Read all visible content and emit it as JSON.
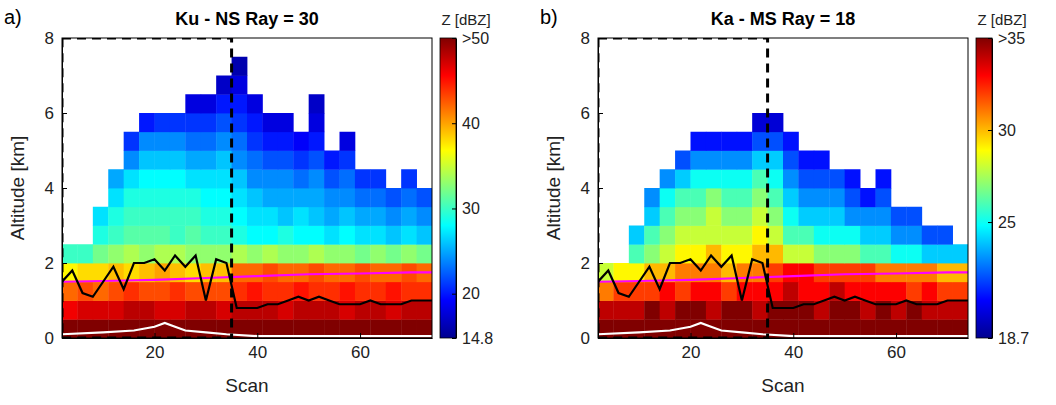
{
  "chart_data": [
    {
      "type": "heatmap",
      "label": "a)",
      "title": "Ku - NS Ray = 30",
      "xlabel": "Scan",
      "ylabel": "Altitude [km]",
      "xlim": [
        2,
        74
      ],
      "ylim": [
        0,
        8
      ],
      "xticks": [
        20,
        40,
        60
      ],
      "yticks": [
        0,
        2,
        4,
        6,
        8
      ],
      "x_edges": [
        2,
        5,
        8,
        11,
        14,
        17,
        20,
        23,
        26,
        29,
        32,
        35,
        38,
        41,
        44,
        47,
        50,
        53,
        56,
        59,
        62,
        65,
        68,
        71,
        74
      ],
      "y_edges": [
        0,
        0.5,
        1,
        1.5,
        2,
        2.5,
        3,
        3.5,
        4,
        4.5,
        5,
        5.5,
        6,
        6.5,
        7,
        7.5,
        8
      ],
      "z": [
        [
          51,
          52,
          52,
          53,
          52,
          52,
          53,
          52,
          52,
          53,
          52,
          52,
          53,
          52,
          52,
          52,
          53,
          52,
          52,
          52,
          53,
          52,
          52,
          52
        ],
        [
          46,
          47,
          47,
          47,
          48,
          48,
          47,
          47,
          48,
          48,
          47,
          48,
          48,
          48,
          47,
          48,
          48,
          48,
          47,
          48,
          48,
          47,
          48,
          48
        ],
        [
          42,
          43,
          42,
          43,
          44,
          43,
          43,
          44,
          43,
          43,
          43,
          44,
          45,
          44,
          44,
          45,
          44,
          44,
          45,
          44,
          44,
          45,
          44,
          44
        ],
        [
          37,
          38,
          38,
          39,
          38,
          39,
          40,
          39,
          38,
          39,
          39,
          42,
          42,
          43,
          42,
          42,
          43,
          42,
          42,
          43,
          42,
          42,
          43,
          42
        ],
        [
          30,
          30,
          32,
          33,
          34,
          33,
          34,
          34,
          33,
          33,
          33,
          34,
          33,
          34,
          33,
          33,
          34,
          33,
          33,
          32,
          33,
          32,
          33,
          32
        ],
        [
          null,
          null,
          29,
          30,
          31,
          31,
          31,
          30,
          31,
          30,
          30,
          29,
          28,
          28,
          29,
          28,
          28,
          27,
          28,
          27,
          27,
          26,
          27,
          26
        ],
        [
          null,
          null,
          27,
          29,
          30,
          30,
          30,
          30,
          30,
          29,
          29,
          28,
          27,
          27,
          26,
          27,
          26,
          25,
          26,
          25,
          25,
          24,
          25,
          24
        ],
        [
          null,
          null,
          null,
          27,
          29,
          29,
          29,
          29,
          29,
          28,
          28,
          27,
          26,
          25,
          25,
          25,
          25,
          24,
          24,
          23,
          23,
          22,
          23,
          22
        ],
        [
          null,
          null,
          null,
          25,
          27,
          28,
          28,
          28,
          27,
          27,
          27,
          26,
          24,
          24,
          24,
          23,
          24,
          22,
          23,
          21,
          21,
          null,
          21,
          null
        ],
        [
          null,
          null,
          null,
          null,
          24,
          26,
          26,
          26,
          25,
          25,
          26,
          24,
          23,
          22,
          22,
          21,
          22,
          20,
          21,
          null,
          null,
          null,
          null,
          null
        ],
        [
          null,
          null,
          null,
          null,
          21,
          24,
          24,
          24,
          23,
          23,
          24,
          23,
          21,
          20,
          20,
          19,
          20,
          null,
          18,
          null,
          null,
          null,
          null,
          null
        ],
        [
          null,
          null,
          null,
          null,
          null,
          20,
          21,
          21,
          21,
          21,
          22,
          21,
          20,
          18,
          18,
          null,
          18,
          null,
          null,
          null,
          null,
          null,
          null,
          null
        ],
        [
          null,
          null,
          null,
          null,
          null,
          null,
          null,
          null,
          18,
          18,
          20,
          20,
          18,
          null,
          null,
          null,
          17,
          null,
          null,
          null,
          null,
          null,
          null,
          null
        ],
        [
          null,
          null,
          null,
          null,
          null,
          null,
          null,
          null,
          null,
          null,
          17,
          18,
          null,
          null,
          null,
          null,
          null,
          null,
          null,
          null,
          null,
          null,
          null,
          null
        ],
        [
          null,
          null,
          null,
          null,
          null,
          null,
          null,
          null,
          null,
          null,
          null,
          16,
          null,
          null,
          null,
          null,
          null,
          null,
          null,
          null,
          null,
          null,
          null,
          null
        ],
        [
          null,
          null,
          null,
          null,
          null,
          null,
          null,
          null,
          null,
          null,
          null,
          null,
          null,
          null,
          null,
          null,
          null,
          null,
          null,
          null,
          null,
          null,
          null,
          null
        ]
      ],
      "colorbar": {
        "title": "Z [dBZ]",
        "range": [
          14.8,
          50
        ],
        "ticks": [
          14.8,
          20,
          30,
          40,
          {
            "value": 50,
            "label": ">50"
          }
        ]
      },
      "lines": [
        {
          "color": "#ff00ff",
          "x": [
            2,
            10,
            20,
            30,
            40,
            50,
            60,
            70,
            74
          ],
          "values": [
            1.5,
            1.52,
            1.55,
            1.6,
            1.65,
            1.7,
            1.72,
            1.75,
            1.75
          ]
        },
        {
          "color": "#000000",
          "x": [
            2,
            4,
            6,
            8,
            10,
            12,
            14,
            16,
            18,
            20,
            22,
            24,
            26,
            28,
            30,
            32,
            34,
            36,
            38,
            40,
            42,
            44,
            46,
            48,
            50,
            52,
            54,
            56,
            58,
            60,
            62,
            64,
            66,
            68,
            70,
            72,
            74
          ],
          "values": [
            1.5,
            1.8,
            1.2,
            1.1,
            1.5,
            1.9,
            1.3,
            2,
            2,
            2.1,
            1.8,
            2.2,
            1.9,
            2.2,
            1,
            2.1,
            2,
            0.8,
            0.8,
            0.8,
            0.9,
            0.9,
            1,
            1.1,
            1,
            1.1,
            1,
            0.9,
            0.9,
            0.9,
            1,
            0.9,
            0.9,
            0.9,
            1,
            1,
            1
          ]
        },
        {
          "color": "#ffffff",
          "x": [
            2,
            10,
            16,
            20,
            22,
            24,
            26,
            30,
            34,
            40,
            50,
            60,
            74
          ],
          "values": [
            0.1,
            0.15,
            0.2,
            0.3,
            0.4,
            0.3,
            0.2,
            0.15,
            0.1,
            0.05,
            0.05,
            0.05,
            0.05
          ]
        }
      ],
      "box": {
        "x": [
          2,
          35
        ],
        "y": [
          0,
          8
        ]
      }
    },
    {
      "type": "heatmap",
      "label": "b)",
      "title": "Ka - MS Ray = 18",
      "xlabel": "Scan",
      "ylabel": "Altitude [km]",
      "xlim": [
        2,
        74
      ],
      "ylim": [
        0,
        8
      ],
      "xticks": [
        20,
        40,
        60
      ],
      "yticks": [
        0,
        2,
        4,
        6,
        8
      ],
      "x_edges": [
        2,
        5,
        8,
        11,
        14,
        17,
        20,
        23,
        26,
        29,
        32,
        35,
        38,
        41,
        44,
        47,
        50,
        53,
        56,
        59,
        62,
        65,
        68,
        71,
        74
      ],
      "y_edges": [
        0,
        0.5,
        1,
        1.5,
        2,
        2.5,
        3,
        3.5,
        4,
        4.5,
        5,
        5.5,
        6,
        6.5,
        7,
        7.5,
        8
      ],
      "z": [
        [
          36,
          37,
          37,
          38,
          37,
          37,
          38,
          37,
          37,
          38,
          37,
          37,
          38,
          37,
          37,
          37,
          38,
          37,
          37,
          37,
          38,
          37,
          37,
          37
        ],
        [
          34,
          34,
          34,
          35,
          34,
          35,
          35,
          34,
          35,
          35,
          34,
          35,
          35,
          35,
          34,
          35,
          35,
          34,
          35,
          34,
          35,
          34,
          34,
          34
        ],
        [
          31,
          32,
          32,
          32,
          33,
          32,
          33,
          33,
          32,
          33,
          33,
          33,
          34,
          33,
          33,
          34,
          33,
          33,
          33,
          33,
          32,
          33,
          32,
          32
        ],
        [
          28,
          29,
          29,
          30,
          30,
          31,
          31,
          31,
          30,
          31,
          31,
          32,
          33,
          33,
          32,
          32,
          32,
          32,
          31,
          31,
          31,
          31,
          30,
          30
        ],
        [
          null,
          null,
          26,
          27,
          28,
          29,
          29,
          30,
          29,
          29,
          30,
          30,
          28,
          28,
          27,
          27,
          27,
          26,
          26,
          25,
          25,
          24,
          24,
          24
        ],
        [
          null,
          null,
          24,
          26,
          27,
          28,
          28,
          28,
          28,
          28,
          29,
          28,
          26,
          26,
          25,
          25,
          25,
          24,
          24,
          23,
          23,
          22,
          22,
          null
        ],
        [
          null,
          null,
          null,
          24,
          26,
          27,
          27,
          28,
          27,
          27,
          28,
          27,
          25,
          24,
          24,
          24,
          23,
          23,
          23,
          22,
          22,
          null,
          null,
          null
        ],
        [
          null,
          null,
          null,
          23,
          25,
          26,
          26,
          27,
          26,
          26,
          27,
          26,
          24,
          23,
          23,
          23,
          22,
          21,
          22,
          null,
          null,
          null,
          null,
          null
        ],
        [
          null,
          null,
          null,
          null,
          23,
          24,
          25,
          25,
          25,
          25,
          26,
          25,
          23,
          22,
          22,
          22,
          21,
          null,
          21,
          null,
          null,
          null,
          null,
          null
        ],
        [
          null,
          null,
          null,
          null,
          null,
          22,
          23,
          23,
          23,
          23,
          24,
          24,
          22,
          21,
          21,
          null,
          null,
          null,
          null,
          null,
          null,
          null,
          null,
          null
        ],
        [
          null,
          null,
          null,
          null,
          null,
          null,
          21,
          21,
          21,
          21,
          22,
          22,
          21,
          null,
          null,
          null,
          null,
          null,
          null,
          null,
          null,
          null,
          null,
          null
        ],
        [
          null,
          null,
          null,
          null,
          null,
          null,
          null,
          null,
          null,
          null,
          20,
          20,
          null,
          null,
          null,
          null,
          null,
          null,
          null,
          null,
          null,
          null,
          null,
          null
        ],
        [
          null,
          null,
          null,
          null,
          null,
          null,
          null,
          null,
          null,
          null,
          null,
          null,
          null,
          null,
          null,
          null,
          null,
          null,
          null,
          null,
          null,
          null,
          null,
          null
        ],
        [
          null,
          null,
          null,
          null,
          null,
          null,
          null,
          null,
          null,
          null,
          null,
          null,
          null,
          null,
          null,
          null,
          null,
          null,
          null,
          null,
          null,
          null,
          null,
          null
        ],
        [
          null,
          null,
          null,
          null,
          null,
          null,
          null,
          null,
          null,
          null,
          null,
          null,
          null,
          null,
          null,
          null,
          null,
          null,
          null,
          null,
          null,
          null,
          null,
          null
        ],
        [
          null,
          null,
          null,
          null,
          null,
          null,
          null,
          null,
          null,
          null,
          null,
          null,
          null,
          null,
          null,
          null,
          null,
          null,
          null,
          null,
          null,
          null,
          null,
          null
        ]
      ],
      "colorbar": {
        "title": "Z [dBZ]",
        "range": [
          18.7,
          35
        ],
        "ticks": [
          18.7,
          25,
          30,
          {
            "value": 35,
            "label": ">35"
          }
        ]
      },
      "lines": [
        {
          "color": "#ff00ff",
          "x": [
            2,
            10,
            20,
            30,
            40,
            50,
            60,
            70,
            74
          ],
          "values": [
            1.5,
            1.52,
            1.55,
            1.6,
            1.65,
            1.7,
            1.72,
            1.75,
            1.75
          ]
        },
        {
          "color": "#000000",
          "x": [
            2,
            4,
            6,
            8,
            10,
            12,
            14,
            16,
            18,
            20,
            22,
            24,
            26,
            28,
            30,
            32,
            34,
            36,
            38,
            40,
            42,
            44,
            46,
            48,
            50,
            52,
            54,
            56,
            58,
            60,
            62,
            64,
            66,
            68,
            70,
            72,
            74
          ],
          "values": [
            1.5,
            1.8,
            1.2,
            1.1,
            1.5,
            1.9,
            1.3,
            2,
            2,
            2.1,
            1.8,
            2.2,
            1.9,
            2.2,
            1,
            2.1,
            2,
            0.8,
            0.8,
            0.8,
            0.9,
            0.9,
            1,
            1.1,
            1,
            1.1,
            1,
            0.9,
            0.9,
            0.9,
            1,
            0.9,
            0.9,
            0.9,
            1,
            1,
            1
          ]
        },
        {
          "color": "#ffffff",
          "x": [
            2,
            10,
            16,
            20,
            22,
            24,
            26,
            30,
            34,
            40,
            50,
            60,
            74
          ],
          "values": [
            0.1,
            0.15,
            0.2,
            0.3,
            0.4,
            0.3,
            0.2,
            0.15,
            0.1,
            0.05,
            0.05,
            0.05,
            0.05
          ]
        }
      ],
      "box": {
        "x": [
          2,
          35
        ],
        "y": [
          0,
          8
        ]
      }
    }
  ]
}
